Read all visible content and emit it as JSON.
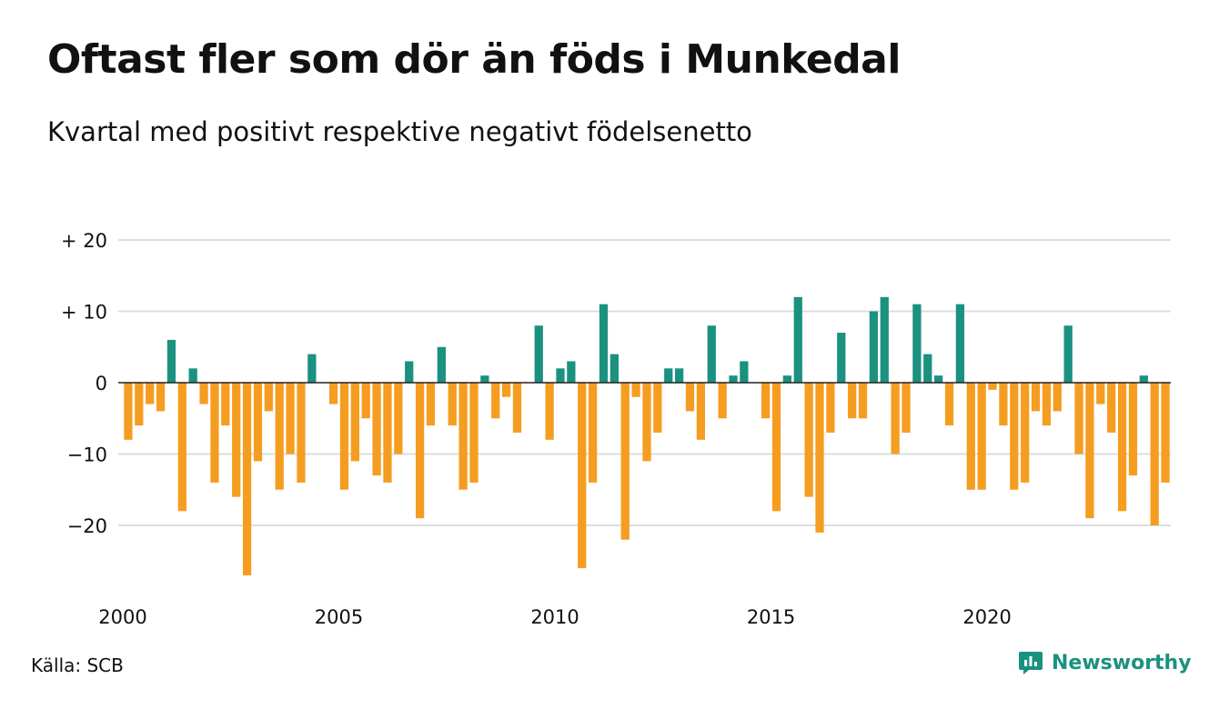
{
  "title": "Oftast fler som dör än föds i Munkedal",
  "subtitle": "Kvartal med positivt respektive negativt födelsenetto",
  "source": "Källa: SCB",
  "brand": {
    "name": "Newsworthy",
    "icon": "newsworthy-logo-icon"
  },
  "colors": {
    "positive": "#1b9180",
    "negative": "#f59d21",
    "grid": "#dddddd",
    "zero_line": "#222222",
    "text": "#111111"
  },
  "chart_data": {
    "type": "bar",
    "start_year": 2000,
    "periods_per_year": 4,
    "ylim": [
      -28,
      22
    ],
    "yticks": [
      20,
      10,
      0,
      -10,
      -20
    ],
    "ytick_labels": [
      "+ 20",
      "+ 10",
      "0",
      "−10",
      "−20"
    ],
    "xticks": [
      2000,
      2005,
      2010,
      2015,
      2020
    ],
    "xtick_labels": [
      "2000",
      "2005",
      "2010",
      "2015",
      "2020"
    ],
    "grid": true,
    "values": [
      -8,
      -6,
      -3,
      -4,
      6,
      -18,
      2,
      -3,
      -14,
      -6,
      -16,
      -27,
      -11,
      -4,
      -15,
      -10,
      -14,
      4,
      0,
      -3,
      -15,
      -11,
      -5,
      -13,
      -14,
      -10,
      3,
      -19,
      -6,
      5,
      -6,
      -15,
      -14,
      1,
      -5,
      -2,
      -7,
      0,
      8,
      -8,
      2,
      3,
      -26,
      -14,
      11,
      4,
      -22,
      -2,
      -11,
      -7,
      2,
      2,
      -4,
      -8,
      8,
      -5,
      1,
      3,
      0,
      -5,
      -18,
      1,
      12,
      -16,
      -21,
      -7,
      7,
      -5,
      -5,
      10,
      12,
      -10,
      -7,
      11,
      4,
      1,
      -6,
      11,
      -15,
      -15,
      -1,
      -6,
      -15,
      -14,
      -4,
      -6,
      -4,
      8,
      -10,
      -19,
      -3,
      -7,
      -18,
      -13,
      1,
      -20,
      -14
    ]
  }
}
